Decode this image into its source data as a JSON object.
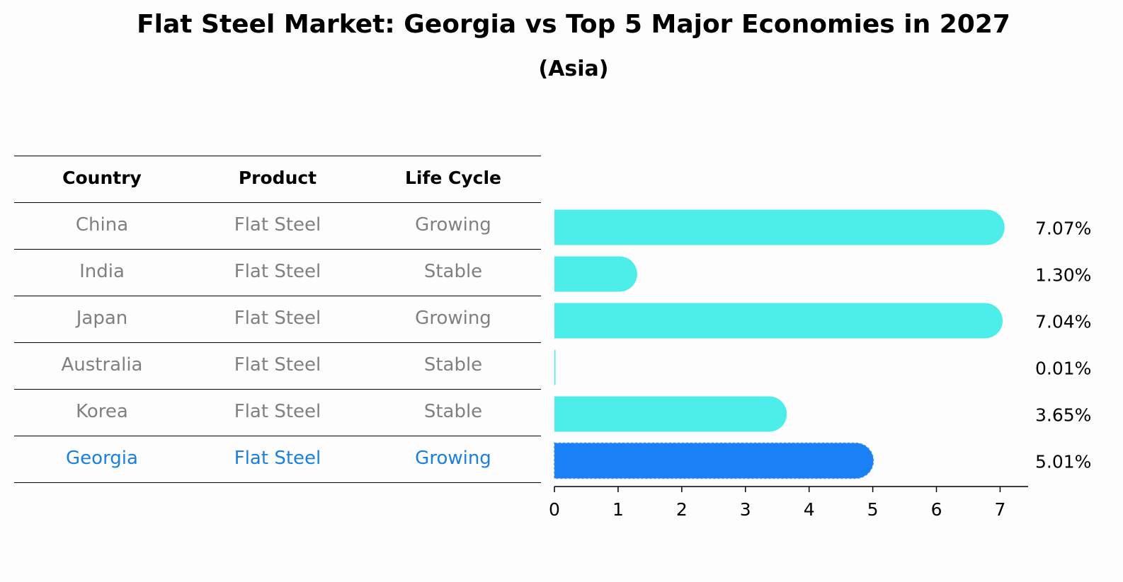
{
  "title": "Flat Steel Market: Georgia vs Top 5 Major Economies in 2027",
  "subtitle": "(Asia)",
  "table": {
    "headers": [
      "Country",
      "Product",
      "Life Cycle"
    ],
    "rows": [
      {
        "country": "China",
        "product": "Flat Steel",
        "life_cycle": "Growing"
      },
      {
        "country": "India",
        "product": "Flat Steel",
        "life_cycle": "Stable"
      },
      {
        "country": "Japan",
        "product": "Flat Steel",
        "life_cycle": "Growing"
      },
      {
        "country": "Australia",
        "product": "Flat Steel",
        "life_cycle": "Stable"
      },
      {
        "country": "Korea",
        "product": "Flat Steel",
        "life_cycle": "Stable"
      },
      {
        "country": "Georgia",
        "product": "Flat Steel",
        "life_cycle": "Growing"
      }
    ],
    "highlight_row": 5
  },
  "colors": {
    "bar": "#4deeea",
    "highlight": "#1a80f5",
    "muted_text": "#808080",
    "highlight_text": "#1a80e0"
  },
  "chart_data": {
    "type": "bar",
    "orientation": "horizontal",
    "categories": [
      "China",
      "India",
      "Japan",
      "Australia",
      "Korea",
      "Georgia"
    ],
    "values": [
      7.07,
      1.3,
      7.04,
      0.01,
      3.65,
      5.01
    ],
    "data_labels": [
      "7.07%",
      "1.30%",
      "7.04%",
      "0.01%",
      "3.65%",
      "5.01%"
    ],
    "xlim": [
      0,
      7.44
    ],
    "xticks": [
      "0",
      "1",
      "2",
      "3",
      "4",
      "5",
      "6",
      "7"
    ],
    "xlabel": "",
    "ylabel": "",
    "grid": false,
    "highlight_category": "Georgia"
  }
}
